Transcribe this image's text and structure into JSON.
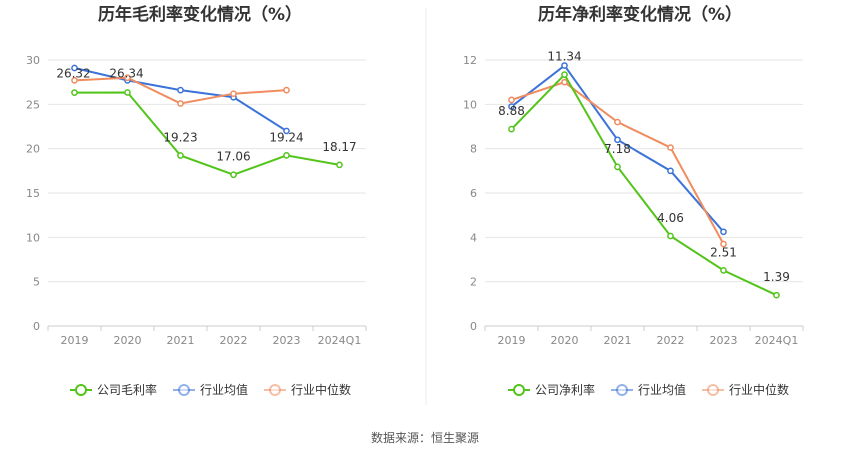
{
  "chart_data": [
    {
      "type": "line",
      "title": "历年毛利率变化情况（%）",
      "categories": [
        "2019",
        "2020",
        "2021",
        "2022",
        "2023",
        "2024Q1"
      ],
      "ylim": [
        0,
        30
      ],
      "yticks": [
        0,
        5,
        10,
        15,
        20,
        25,
        30
      ],
      "grid": true,
      "legend_position": "bottom",
      "series": [
        {
          "name": "公司毛利率",
          "color": "#52c41a",
          "values": [
            26.32,
            26.34,
            19.23,
            17.06,
            19.24,
            18.17
          ],
          "labels": [
            "26.32",
            "26.34",
            "19.23",
            "17.06",
            "19.24",
            "18.17"
          ]
        },
        {
          "name": "行业均值",
          "color": "#3b73d9",
          "values": [
            29.1,
            27.7,
            26.6,
            25.8,
            22.0,
            null
          ]
        },
        {
          "name": "行业中位数",
          "color": "#f08c5e",
          "values": [
            27.7,
            28.0,
            25.1,
            26.2,
            26.6,
            null
          ]
        }
      ]
    },
    {
      "type": "line",
      "title": "历年净利率变化情况（%）",
      "categories": [
        "2019",
        "2020",
        "2021",
        "2022",
        "2023",
        "2024Q1"
      ],
      "ylim": [
        0,
        12
      ],
      "yticks": [
        0,
        2,
        4,
        6,
        8,
        10,
        12
      ],
      "grid": true,
      "legend_position": "bottom",
      "series": [
        {
          "name": "公司净利率",
          "color": "#52c41a",
          "values": [
            8.88,
            11.34,
            7.18,
            4.06,
            2.51,
            1.39
          ],
          "labels": [
            "8.88",
            "11.34",
            "7.18",
            "4.06",
            "2.51",
            "1.39"
          ]
        },
        {
          "name": "行业均值",
          "color": "#3b73d9",
          "values": [
            9.9,
            11.75,
            8.4,
            7.0,
            4.25,
            null
          ]
        },
        {
          "name": "行业中位数",
          "color": "#f08c5e",
          "values": [
            10.2,
            11.0,
            9.2,
            8.05,
            3.7,
            null
          ]
        }
      ]
    }
  ],
  "footer": {
    "source": "数据来源：恒生聚源"
  }
}
